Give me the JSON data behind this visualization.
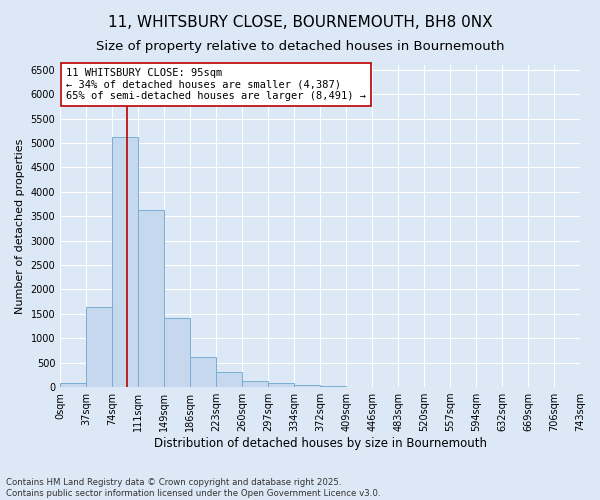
{
  "title": "11, WHITSBURY CLOSE, BOURNEMOUTH, BH8 0NX",
  "subtitle": "Size of property relative to detached houses in Bournemouth",
  "xlabel": "Distribution of detached houses by size in Bournemouth",
  "ylabel": "Number of detached properties",
  "bar_edges": [
    0,
    37,
    74,
    111,
    149,
    186,
    223,
    260,
    297,
    334,
    372,
    409,
    446,
    483,
    520,
    557,
    594,
    632,
    669,
    706,
    743
  ],
  "bar_heights": [
    75,
    1650,
    5120,
    3620,
    1420,
    620,
    310,
    130,
    75,
    45,
    30,
    0,
    0,
    0,
    0,
    0,
    0,
    0,
    0,
    0
  ],
  "bar_color": "#c5d8ee",
  "bar_edge_color": "#7aaed4",
  "bar_linewidth": 0.7,
  "vline_x": 95,
  "vline_color": "#bb0000",
  "vline_linewidth": 1.2,
  "annotation_text": "11 WHITSBURY CLOSE: 95sqm\n← 34% of detached houses are smaller (4,387)\n65% of semi-detached houses are larger (8,491) →",
  "annotation_box_color": "#ffffff",
  "annotation_box_edge_color": "#bb0000",
  "ylim": [
    0,
    6600
  ],
  "xlim": [
    0,
    743
  ],
  "yticks": [
    0,
    500,
    1000,
    1500,
    2000,
    2500,
    3000,
    3500,
    4000,
    4500,
    5000,
    5500,
    6000,
    6500
  ],
  "background_color": "#dce8f5",
  "grid_color": "#ffffff",
  "footer_line1": "Contains HM Land Registry data © Crown copyright and database right 2025.",
  "footer_line2": "Contains public sector information licensed under the Open Government Licence v3.0.",
  "tick_labels": [
    "0sqm",
    "37sqm",
    "74sqm",
    "111sqm",
    "149sqm",
    "186sqm",
    "223sqm",
    "260sqm",
    "297sqm",
    "334sqm",
    "372sqm",
    "409sqm",
    "446sqm",
    "483sqm",
    "520sqm",
    "557sqm",
    "594sqm",
    "632sqm",
    "669sqm",
    "706sqm",
    "743sqm"
  ],
  "title_fontsize": 11,
  "subtitle_fontsize": 9.5,
  "label_fontsize": 8.5,
  "tick_fontsize": 7,
  "annotation_fontsize": 7.5,
  "ylabel_fontsize": 8
}
